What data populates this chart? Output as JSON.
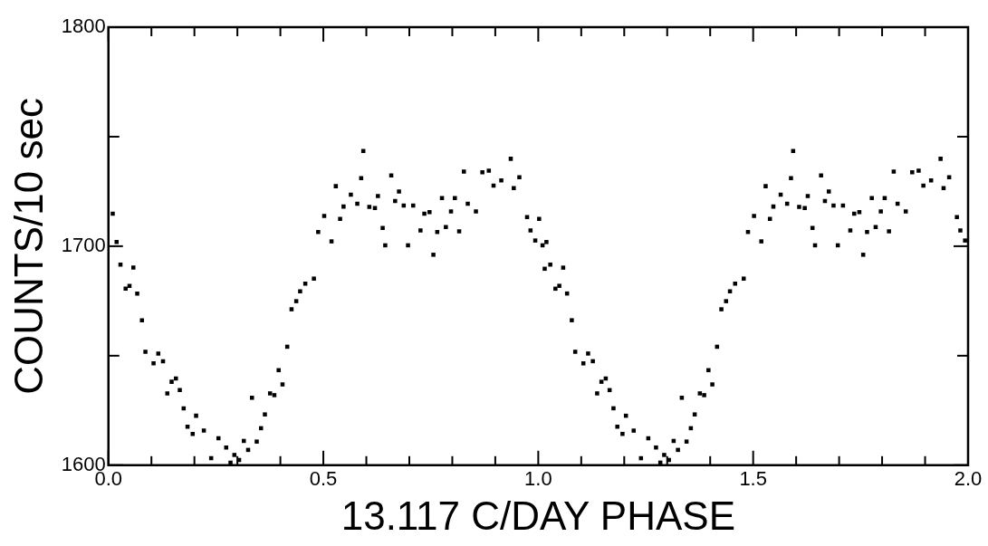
{
  "chart_data": {
    "type": "scatter",
    "xlabel": "13.117 C/DAY PHASE",
    "ylabel": "COUNTS/10 sec",
    "marker": "square",
    "grid": false,
    "legend": false,
    "xlim": [
      0,
      2
    ],
    "ylim": [
      1600,
      1800
    ],
    "xticks": [
      {
        "value": 0,
        "label": "0.0"
      },
      {
        "value": 0.1,
        "label": null
      },
      {
        "value": 0.2,
        "label": null
      },
      {
        "value": 0.3,
        "label": null
      },
      {
        "value": 0.4,
        "label": null
      },
      0.5,
      {
        "value": 0.6,
        "label": null
      },
      {
        "value": 0.7,
        "label": null
      },
      {
        "value": 0.8,
        "label": null
      },
      {
        "value": 0.9,
        "label": null
      },
      {
        "value": 1,
        "label": "1.0"
      },
      {
        "value": 1.1,
        "label": null
      },
      {
        "value": 1.2,
        "label": null
      },
      {
        "value": 1.3,
        "label": null
      },
      {
        "value": 1.4,
        "label": null
      },
      1.5,
      {
        "value": 1.6,
        "label": null
      },
      {
        "value": 1.7,
        "label": null
      },
      {
        "value": 1.8,
        "label": null
      },
      {
        "value": 1.9,
        "label": null
      },
      {
        "value": 2,
        "label": "2.0"
      }
    ],
    "yticks": [
      1600,
      {
        "value": 1650,
        "label": null
      },
      1700,
      {
        "value": 1750,
        "label": null
      },
      1800
    ],
    "series": [
      {
        "color": "#000000",
        "x": [
          0.01,
          0.019,
          0.028,
          0.04,
          0.049,
          0.058,
          0.067,
          0.078,
          0.086,
          0.105,
          0.116,
          0.127,
          0.137,
          0.147,
          0.157,
          0.166,
          0.175,
          0.184,
          0.196,
          0.204,
          0.222,
          0.239,
          0.256,
          0.274,
          0.284,
          0.293,
          0.304,
          0.315,
          0.325,
          0.334,
          0.345,
          0.355,
          0.364,
          0.376,
          0.386,
          0.396,
          0.405,
          0.416,
          0.426,
          0.437,
          0.446,
          0.458,
          0.478,
          0.488,
          0.502,
          0.519,
          0.529,
          0.539,
          0.547,
          0.564,
          0.579,
          0.588,
          0.593,
          0.607,
          0.62,
          0.627,
          0.638,
          0.644,
          0.658,
          0.667,
          0.676,
          0.687,
          0.697,
          0.709,
          0.726,
          0.735,
          0.747,
          0.756,
          0.765,
          0.776,
          0.785,
          0.797,
          0.806,
          0.816,
          0.827,
          0.836,
          0.855,
          0.87,
          0.885,
          0.896,
          0.914,
          0.936,
          0.943,
          0.956,
          0.974,
          0.982,
          0.993,
          1.002,
          1.01,
          1.015,
          1.019,
          1.028,
          1.04,
          1.049,
          1.058,
          1.067,
          1.078,
          1.086,
          1.105,
          1.116,
          1.127,
          1.137,
          1.147,
          1.157,
          1.166,
          1.175,
          1.184,
          1.196,
          1.204,
          1.222,
          1.239,
          1.256,
          1.274,
          1.284,
          1.293,
          1.304,
          1.315,
          1.325,
          1.334,
          1.345,
          1.355,
          1.364,
          1.376,
          1.386,
          1.396,
          1.405,
          1.416,
          1.426,
          1.437,
          1.446,
          1.458,
          1.478,
          1.488,
          1.502,
          1.519,
          1.529,
          1.539,
          1.547,
          1.564,
          1.579,
          1.588,
          1.593,
          1.607,
          1.62,
          1.627,
          1.638,
          1.644,
          1.658,
          1.667,
          1.676,
          1.687,
          1.697,
          1.709,
          1.726,
          1.735,
          1.747,
          1.756,
          1.765,
          1.776,
          1.785,
          1.797,
          1.806,
          1.816,
          1.827,
          1.836,
          1.855,
          1.87,
          1.885,
          1.896,
          1.914,
          1.936,
          1.943,
          1.956,
          1.974,
          1.982,
          1.993
        ],
        "values": [
          1714.8,
          1701.9,
          1691.6,
          1680.6,
          1681.9,
          1690.2,
          1678.4,
          1666.2,
          1651.8,
          1646.5,
          1651.0,
          1647.5,
          1632.8,
          1638.1,
          1639.6,
          1634.3,
          1626.0,
          1617.6,
          1614.3,
          1622.6,
          1615.8,
          1603.2,
          1612.3,
          1608.1,
          1601.2,
          1604.7,
          1602.4,
          1611.1,
          1607.0,
          1630.8,
          1610.8,
          1616.9,
          1623.2,
          1632.8,
          1632.0,
          1643.4,
          1636.9,
          1654.1,
          1671.2,
          1674.9,
          1679.4,
          1682.9,
          1685.2,
          1706.5,
          1713.8,
          1702.2,
          1727.4,
          1712.5,
          1718.1,
          1723.5,
          1719.4,
          1731.1,
          1743.5,
          1717.9,
          1717.4,
          1722.9,
          1708.3,
          1700.4,
          1732.3,
          1720.6,
          1725.0,
          1718.6,
          1700.4,
          1718.6,
          1707.2,
          1714.8,
          1715.6,
          1696.1,
          1706.5,
          1722.0,
          1708.7,
          1715.9,
          1722.0,
          1706.8,
          1734.1,
          1719.4,
          1715.9,
          1733.8,
          1734.5,
          1727.7,
          1730.0,
          1739.9,
          1726.5,
          1731.5,
          1713.3,
          1707.2,
          1702.6,
          1712.5,
          1700.4,
          1689.7,
          1701.9,
          1691.6,
          1680.6,
          1681.9,
          1690.2,
          1678.4,
          1666.2,
          1651.8,
          1646.5,
          1651.0,
          1647.5,
          1632.8,
          1638.1,
          1639.6,
          1634.3,
          1626.0,
          1617.6,
          1614.3,
          1622.6,
          1615.8,
          1603.2,
          1612.3,
          1608.1,
          1601.2,
          1604.7,
          1602.4,
          1611.1,
          1607.0,
          1630.8,
          1610.8,
          1616.9,
          1623.2,
          1632.8,
          1632.0,
          1643.4,
          1636.9,
          1654.1,
          1671.2,
          1674.9,
          1679.4,
          1682.9,
          1685.2,
          1706.5,
          1713.8,
          1702.2,
          1727.4,
          1712.5,
          1718.1,
          1723.5,
          1719.4,
          1731.1,
          1743.5,
          1717.9,
          1717.4,
          1722.9,
          1708.3,
          1700.4,
          1732.3,
          1720.6,
          1725.0,
          1718.6,
          1700.4,
          1718.6,
          1707.2,
          1714.8,
          1715.6,
          1696.1,
          1706.5,
          1722.0,
          1708.7,
          1715.9,
          1722.0,
          1706.8,
          1734.1,
          1719.4,
          1715.9,
          1733.8,
          1734.5,
          1727.7,
          1730.0,
          1739.9,
          1726.5,
          1731.5,
          1713.3,
          1707.2,
          1702.6
        ]
      }
    ]
  }
}
